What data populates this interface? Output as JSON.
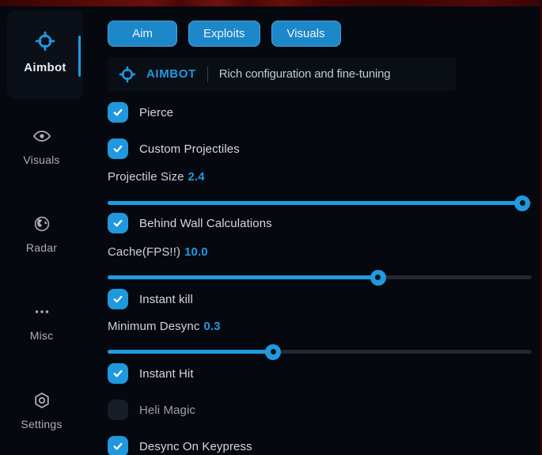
{
  "colors": {
    "accent": "#1f9ae0",
    "tab_blue": "#1c87c9",
    "checkbox_on": "#1f98dd",
    "checkbox_off": "#171d26",
    "border_red": "#4a0707",
    "panel": "#0a0e15",
    "text": "#d4d9df",
    "muted": "#a9b0bb"
  },
  "sidebar": {
    "items": [
      {
        "label": "Aimbot",
        "icon": "crosshair-icon",
        "active": true
      },
      {
        "label": "Visuals",
        "icon": "eye-icon",
        "active": false
      },
      {
        "label": "Radar",
        "icon": "globe-icon",
        "active": false
      },
      {
        "label": "Misc",
        "icon": "ellipsis-icon",
        "active": false
      },
      {
        "label": "Settings",
        "icon": "gear-icon",
        "active": false
      }
    ]
  },
  "tabs": {
    "items": [
      {
        "label": "Aim"
      },
      {
        "label": "Exploits"
      },
      {
        "label": "Visuals"
      }
    ]
  },
  "header": {
    "icon": "crosshair-icon",
    "title": "AIMBOT",
    "subtitle": "Rich configuration and fine-tuning"
  },
  "controls": [
    {
      "type": "checkbox",
      "label": "Pierce",
      "checked": true
    },
    {
      "type": "checkbox",
      "label": "Custom Projectiles",
      "checked": true
    },
    {
      "type": "slider",
      "label": "Projectile Size",
      "value": "2.4",
      "percent": 97.8
    },
    {
      "type": "checkbox",
      "label": "Behind Wall Calculations",
      "checked": true
    },
    {
      "type": "slider",
      "label": "Cache(FPS!!)",
      "value": "10.0",
      "percent": 63.8
    },
    {
      "type": "checkbox",
      "label": "Instant kill",
      "checked": true
    },
    {
      "type": "slider",
      "label": "Minimum Desync",
      "value": "0.3",
      "percent": 39.0
    },
    {
      "type": "checkbox",
      "label": "Instant Hit",
      "checked": true
    },
    {
      "type": "checkbox",
      "label": "Heli Magic",
      "checked": false
    },
    {
      "type": "checkbox",
      "label": "Desync On Keypress",
      "checked": true
    }
  ]
}
